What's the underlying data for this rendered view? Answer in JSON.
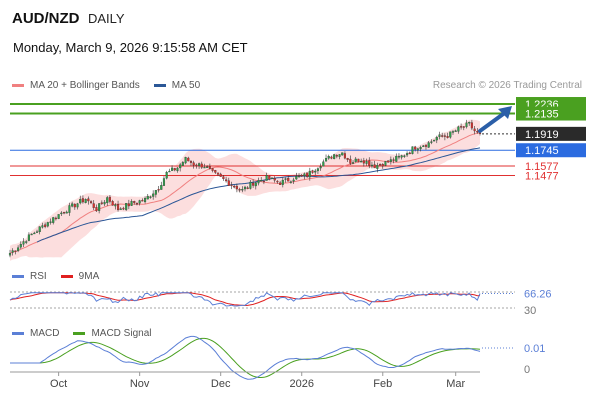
{
  "header": {
    "title": "AUD/NZD",
    "period": "DAILY",
    "datetime": "Monday, March 9, 2026 9:15:58 AM CET",
    "credit": "Research © 2026 Trading Central"
  },
  "legends": {
    "price": [
      {
        "label": "MA 20 + Bollinger Bands",
        "color": "#f08080"
      },
      {
        "label": "MA 50",
        "color": "#2b5797"
      }
    ],
    "rsi": [
      {
        "label": "RSI",
        "color": "#5b7fd6"
      },
      {
        "label": "9MA",
        "color": "#e02020"
      }
    ],
    "macd": [
      {
        "label": "MACD",
        "color": "#5b7fd6"
      },
      {
        "label": "MACD Signal",
        "color": "#4aa020"
      }
    ]
  },
  "chart_data": [
    {
      "panel": "price",
      "type": "candlestick",
      "x_ticks": [
        "Oct",
        "Nov",
        "Dec",
        "2026",
        "Feb",
        "Mar"
      ],
      "ylim": [
        1.06,
        1.23
      ],
      "last_price": 1.1919,
      "levels": [
        {
          "value": 1.2236,
          "label": "1.2236",
          "kind": "target",
          "color": "#4aa020"
        },
        {
          "value": 1.2135,
          "label": "1.2135",
          "kind": "target",
          "color": "#4aa020"
        },
        {
          "value": 1.1745,
          "label": "1.1745",
          "kind": "pivot",
          "color": "#2b6be0"
        },
        {
          "value": 1.1577,
          "label": "1.1577",
          "kind": "support",
          "color": "#e03030"
        },
        {
          "value": 1.1477,
          "label": "1.1477",
          "kind": "support",
          "color": "#e03030"
        }
      ],
      "close_path": [
        [
          0,
          1.065
        ],
        [
          8,
          1.085
        ],
        [
          15,
          1.1
        ],
        [
          20,
          1.11
        ],
        [
          25,
          1.118
        ],
        [
          28,
          1.123
        ],
        [
          32,
          1.112
        ],
        [
          36,
          1.124
        ],
        [
          40,
          1.112
        ],
        [
          45,
          1.118
        ],
        [
          50,
          1.122
        ],
        [
          55,
          1.135
        ],
        [
          58,
          1.15
        ],
        [
          62,
          1.156
        ],
        [
          65,
          1.165
        ],
        [
          68,
          1.16
        ],
        [
          72,
          1.158
        ],
        [
          75,
          1.15
        ],
        [
          78,
          1.145
        ],
        [
          82,
          1.138
        ],
        [
          86,
          1.132
        ],
        [
          90,
          1.14
        ],
        [
          95,
          1.145
        ],
        [
          100,
          1.14
        ],
        [
          105,
          1.145
        ],
        [
          110,
          1.148
        ],
        [
          115,
          1.16
        ],
        [
          120,
          1.17
        ],
        [
          123,
          1.172
        ],
        [
          126,
          1.162
        ],
        [
          130,
          1.165
        ],
        [
          135,
          1.158
        ],
        [
          140,
          1.162
        ],
        [
          145,
          1.168
        ],
        [
          150,
          1.178
        ],
        [
          155,
          1.182
        ],
        [
          158,
          1.188
        ],
        [
          162,
          1.19
        ],
        [
          166,
          1.197
        ],
        [
          170,
          1.202
        ],
        [
          172,
          1.195
        ],
        [
          174,
          1.19
        ]
      ],
      "total_bars": 175
    },
    {
      "panel": "rsi",
      "type": "line",
      "current_value": 66.26,
      "ticks": [
        30
      ],
      "ylim": [
        20,
        80
      ]
    },
    {
      "panel": "macd",
      "type": "line",
      "current_value": 0.01,
      "ticks": [
        0
      ],
      "ylim": [
        -0.006,
        0.014
      ]
    }
  ]
}
